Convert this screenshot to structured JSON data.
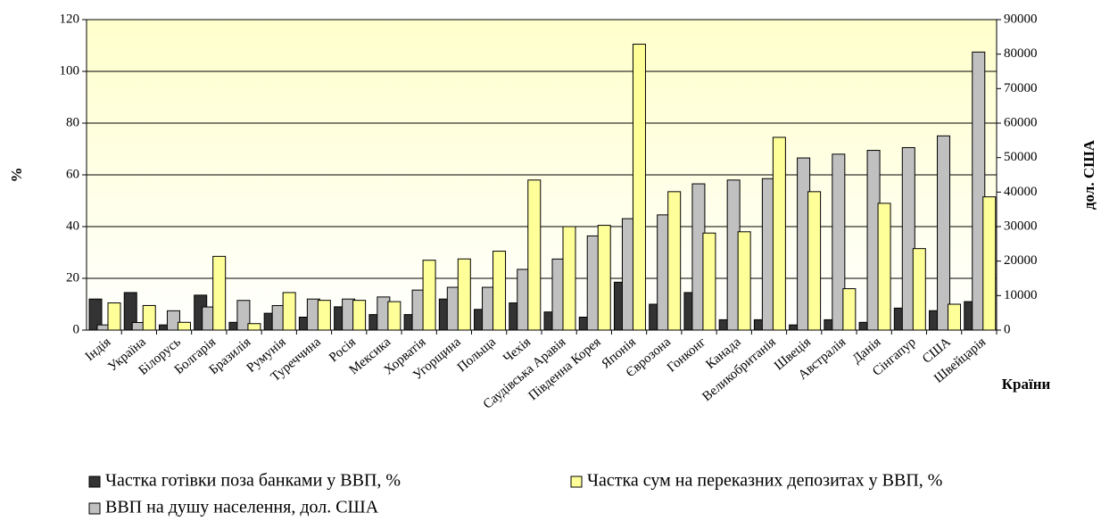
{
  "chart_data": {
    "type": "bar",
    "x_label": "Країни",
    "y_label": "%",
    "y2_label": "дол. США",
    "categories": [
      "Індія",
      "Україна",
      "Білорусь",
      "Болгарія",
      "Бразилія",
      "Румунія",
      "Туреччина",
      "Росія",
      "Мексика",
      "Хорватія",
      "Угорщина",
      "Польща",
      "Чехія",
      "Саудівська Аравія",
      "Південна Корея",
      "Японія",
      "Єврозона",
      "Гонконг",
      "Канада",
      "Великобританія",
      "Швеція",
      "Австралія",
      "Данія",
      "Сінгапур",
      "США",
      "Швейцарія"
    ],
    "series": [
      {
        "name": "Частка готівки поза банками у ВВП, %",
        "color": "#333333",
        "axis": "y",
        "values": [
          12,
          14.5,
          2,
          13.5,
          3,
          6.5,
          5,
          9,
          6,
          6,
          12,
          8,
          10.5,
          7,
          5,
          18.5,
          10,
          14.5,
          4,
          4,
          2,
          4,
          3,
          8.5,
          7.5,
          11
        ]
      },
      {
        "name": "Частка сум на переказних депозитах у ВВП, %",
        "color": "#ffff99",
        "axis": "y",
        "values": [
          10.5,
          9.5,
          3,
          28.5,
          2.5,
          14.5,
          11.5,
          11.5,
          11,
          27,
          27.5,
          30.5,
          58,
          40,
          40.5,
          110.5,
          53.5,
          37.5,
          38,
          74.5,
          53.5,
          16,
          49,
          31.5,
          10,
          51.5
        ]
      },
      {
        "name": "ВВП на душу населення, дол. США",
        "color": "#c0c0c0",
        "axis": "y2",
        "values": [
          1500,
          2200,
          5600,
          6700,
          8600,
          7100,
          9000,
          9000,
          9600,
          11600,
          12400,
          12400,
          17600,
          20600,
          27300,
          32300,
          33400,
          42400,
          43500,
          43900,
          49900,
          51000,
          52100,
          52900,
          56300,
          80600
        ]
      }
    ],
    "ylim": [
      0,
      120
    ],
    "yticks": [
      0,
      20,
      40,
      60,
      80,
      100,
      120
    ],
    "y2lim": [
      0,
      90000
    ],
    "y2ticks": [
      0,
      10000,
      20000,
      30000,
      40000,
      50000,
      60000,
      70000,
      80000,
      90000
    ],
    "grid": true
  }
}
